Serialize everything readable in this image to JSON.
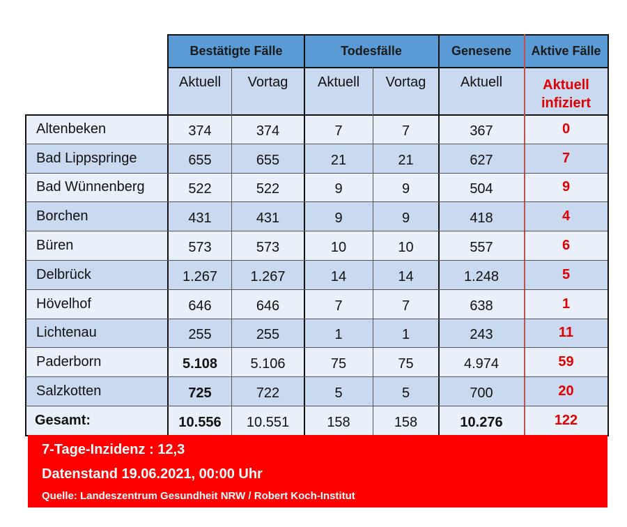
{
  "header": {
    "groups": [
      "Bestätigte Fälle",
      "Todesfälle",
      "Genesene",
      "Aktive Fälle"
    ],
    "subheaders": [
      "Aktuell",
      "Vortag",
      "Aktuell",
      "Vortag",
      "Aktuell"
    ],
    "active_sub_line1": "Aktuell",
    "active_sub_line2": "infiziert"
  },
  "rows": [
    {
      "name": "Altenbeken",
      "bc": "374",
      "bv": "374",
      "tc": "7",
      "tv": "7",
      "g": "367",
      "a": "0"
    },
    {
      "name": "Bad Lippspringe",
      "bc": "655",
      "bv": "655",
      "tc": "21",
      "tv": "21",
      "g": "627",
      "a": "7"
    },
    {
      "name": "Bad Wünnenberg",
      "bc": "522",
      "bv": "522",
      "tc": "9",
      "tv": "9",
      "g": "504",
      "a": "9"
    },
    {
      "name": "Borchen",
      "bc": "431",
      "bv": "431",
      "tc": "9",
      "tv": "9",
      "g": "418",
      "a": "4"
    },
    {
      "name": "Büren",
      "bc": "573",
      "bv": "573",
      "tc": "10",
      "tv": "10",
      "g": "557",
      "a": "6"
    },
    {
      "name": "Delbrück",
      "bc": "1.267",
      "bv": "1.267",
      "tc": "14",
      "tv": "14",
      "g": "1.248",
      "a": "5"
    },
    {
      "name": "Hövelhof",
      "bc": "646",
      "bv": "646",
      "tc": "7",
      "tv": "7",
      "g": "638",
      "a": "1"
    },
    {
      "name": "Lichtenau",
      "bc": "255",
      "bv": "255",
      "tc": "1",
      "tv": "1",
      "g": "243",
      "a": "11"
    },
    {
      "name": "Paderborn",
      "bc": "5.108",
      "bv": "5.106",
      "tc": "75",
      "tv": "75",
      "g": "4.974",
      "a": "59"
    },
    {
      "name": "Salzkotten",
      "bc": "725",
      "bv": "722",
      "tc": "5",
      "tv": "5",
      "g": "700",
      "a": "20"
    }
  ],
  "total": {
    "name": "Gesamt:",
    "bc": "10.556",
    "bv": "10.551",
    "tc": "158",
    "tv": "158",
    "g": "10.276",
    "a": "122"
  },
  "footer": {
    "incidence": "7-Tage-Inzidenz : 12,3",
    "date": "Datenstand 19.06.2021, 00:00 Uhr",
    "source": "Quelle: Landeszentrum Gesundheit NRW / Robert Koch-Institut"
  },
  "colors": {
    "header": "#5b9bd5",
    "band": "#c9d9ef",
    "light": "#eaf0fa",
    "accent": "#ff0000"
  }
}
